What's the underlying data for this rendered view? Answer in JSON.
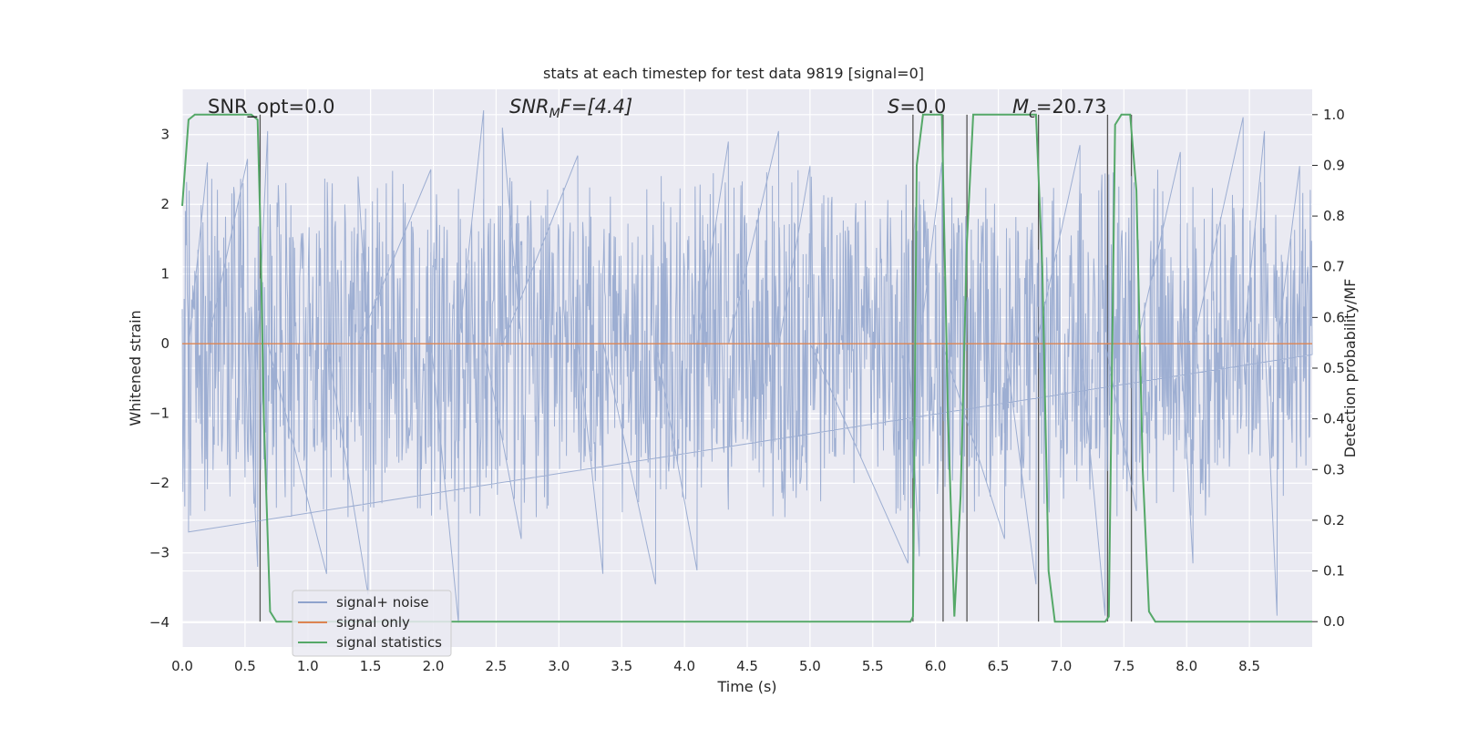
{
  "chart_data": {
    "type": "line",
    "title": "stats at each timestep for test data 9819 [signal=0]",
    "xlabel": "Time (s)",
    "ylabel_left": "Whitened strain",
    "ylabel_right": "Detection probability/MF",
    "xlim": [
      0.0,
      9.0
    ],
    "ylim_left": [
      -4.35,
      3.65
    ],
    "ylim_right": [
      -0.05,
      1.05
    ],
    "x_ticks": [
      0.0,
      0.5,
      1.0,
      1.5,
      2.0,
      2.5,
      3.0,
      3.5,
      4.0,
      4.5,
      5.0,
      5.5,
      6.0,
      6.5,
      7.0,
      7.5,
      8.0,
      8.5
    ],
    "x_tick_labels": [
      "0.0",
      "0.5",
      "1.0",
      "1.5",
      "2.0",
      "2.5",
      "3.0",
      "3.5",
      "4.0",
      "4.5",
      "5.0",
      "5.5",
      "6.0",
      "6.5",
      "7.0",
      "7.5",
      "8.0",
      "8.5"
    ],
    "y_left_ticks": [
      3,
      2,
      1,
      0,
      -1,
      -2,
      -3,
      -4
    ],
    "y_left_tick_labels": [
      "3",
      "2",
      "1",
      "0",
      "−1",
      "−2",
      "−3",
      "−4"
    ],
    "y_right_ticks": [
      1.0,
      0.9,
      0.8,
      0.7,
      0.6,
      0.5,
      0.4,
      0.3,
      0.2,
      0.1,
      0.0
    ],
    "y_right_tick_labels": [
      "1.0",
      "0.9",
      "0.8",
      "0.7",
      "0.6",
      "0.5",
      "0.4",
      "0.3",
      "0.2",
      "0.1",
      "0.0"
    ],
    "grid": true,
    "legend_position": "lower-left",
    "annotations": {
      "snr_opt": "SNR_opt=0.0",
      "snr_mf_sym": "SNR",
      "snr_mf_sub": "M",
      "snr_mf_tail": "F=[4.4]",
      "s_sym": "S",
      "s_tail": "=0.0",
      "mc_sym": "M",
      "mc_sub": "c",
      "mc_tail": "=20.73"
    },
    "series": [
      {
        "name": "signal+ noise",
        "color": "#8fa3cc",
        "description_of_envelope": "dense noise in [-1.8, 1.9] with spikes",
        "spikes": [
          [
            0.05,
            -2.7
          ],
          [
            0.2,
            2.6
          ],
          [
            0.52,
            2.65
          ],
          [
            0.6,
            -3.2
          ],
          [
            0.68,
            3.05
          ],
          [
            1.15,
            -3.3
          ],
          [
            1.48,
            -3.6
          ],
          [
            1.4,
            2.4
          ],
          [
            1.98,
            2.5
          ],
          [
            2.2,
            -4.0
          ],
          [
            2.4,
            3.35
          ],
          [
            2.7,
            -2.8
          ],
          [
            2.55,
            3.1
          ],
          [
            3.15,
            2.7
          ],
          [
            3.35,
            -3.3
          ],
          [
            3.77,
            -3.45
          ],
          [
            4.1,
            -3.25
          ],
          [
            4.35,
            2.9
          ],
          [
            4.75,
            3.05
          ],
          [
            5.0,
            2.55
          ],
          [
            5.78,
            -3.15
          ],
          [
            5.87,
            -3.05
          ],
          [
            6.05,
            2.6
          ],
          [
            6.55,
            -2.8
          ],
          [
            6.8,
            -3.45
          ],
          [
            7.15,
            2.85
          ],
          [
            7.35,
            -3.9
          ],
          [
            7.6,
            -2.4
          ],
          [
            7.95,
            2.75
          ],
          [
            8.05,
            -3.15
          ],
          [
            8.45,
            3.25
          ],
          [
            8.62,
            3.05
          ],
          [
            8.72,
            -3.9
          ],
          [
            8.9,
            2.55
          ]
        ]
      },
      {
        "name": "signal only",
        "color": "#dd8452",
        "x": [
          0.0,
          9.0
        ],
        "y": [
          0.0,
          0.0
        ]
      },
      {
        "name": "signal statistics",
        "color": "#55a868",
        "axis": "right",
        "x": [
          0.0,
          0.05,
          0.1,
          0.15,
          0.2,
          0.3,
          0.4,
          0.5,
          0.55,
          0.6,
          0.62,
          0.65,
          0.7,
          0.75,
          0.8,
          1.0,
          2.0,
          3.0,
          4.0,
          5.0,
          5.7,
          5.8,
          5.82,
          5.85,
          5.9,
          6.0,
          6.05,
          6.1,
          6.15,
          6.2,
          6.25,
          6.3,
          6.5,
          6.7,
          6.8,
          6.85,
          6.9,
          6.95,
          7.0,
          7.2,
          7.35,
          7.38,
          7.43,
          7.48,
          7.55,
          7.6,
          7.65,
          7.7,
          7.75,
          7.8,
          8.0,
          9.0
        ],
        "y": [
          0.82,
          0.99,
          1.0,
          1.0,
          1.0,
          1.0,
          1.0,
          1.0,
          1.0,
          0.99,
          0.8,
          0.4,
          0.02,
          0.0,
          0.0,
          0.0,
          0.0,
          0.0,
          0.0,
          0.0,
          0.0,
          0.0,
          0.01,
          0.9,
          1.0,
          1.0,
          1.0,
          0.4,
          0.01,
          0.25,
          0.75,
          1.0,
          1.0,
          1.0,
          1.0,
          0.7,
          0.1,
          0.0,
          0.0,
          0.0,
          0.0,
          0.01,
          0.98,
          1.0,
          1.0,
          0.85,
          0.3,
          0.02,
          0.0,
          0.0,
          0.0,
          0.0
        ]
      }
    ],
    "vertical_markers": [
      0.62,
      5.82,
      6.06,
      6.25,
      6.82,
      7.37,
      7.56
    ]
  }
}
